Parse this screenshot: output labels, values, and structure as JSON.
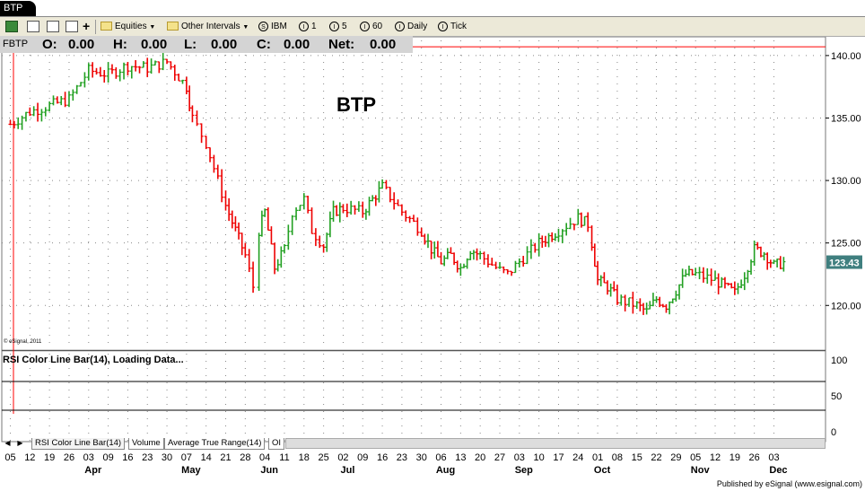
{
  "window": {
    "tab_title": "BTP"
  },
  "toolbar": {
    "equities": "Equities",
    "other_intervals": "Other Intervals",
    "intervals": [
      {
        "glyph": "S",
        "label": "IBM"
      },
      {
        "glyph": "I",
        "label": "1"
      },
      {
        "glyph": "I",
        "label": "5"
      },
      {
        "glyph": "I",
        "label": "60"
      },
      {
        "glyph": "I",
        "label": "Daily"
      },
      {
        "glyph": "I",
        "label": "Tick"
      }
    ]
  },
  "ohlc": {
    "symbol": "FBTP",
    "o_label": "O:",
    "o_value": "0.00",
    "h_label": "H:",
    "h_value": "0.00",
    "l_label": "L:",
    "l_value": "0.00",
    "c_label": "C:",
    "c_value": "0.00",
    "net_label": "Net:",
    "net_value": "0.00"
  },
  "copyright": "© eSignal, 2011",
  "rsi_label": "RSI Color Line Bar(14), Loading Data...",
  "study_tabs": [
    "RSI Color Line Bar(14)",
    "Volume",
    "Average True Range(14)",
    "OI"
  ],
  "footer": "Published by eSignal (www.esignal.com)",
  "colors": {
    "up": "#22a022",
    "down": "#ee0000",
    "price_box": "#3f7f7f",
    "cursor": "#ff0000",
    "ohlc_bg": "#d4d4d4"
  },
  "chart_data": {
    "type": "ohlc-bar",
    "title": "BTP",
    "ylim": [
      116.5,
      141.5
    ],
    "yticks": [
      "140.00",
      "135.00",
      "130.00",
      "125.00",
      "120.00"
    ],
    "last_price": "123.43",
    "resistance_line": 140.7,
    "rsi_panel": {
      "ticks": [
        "100",
        "50",
        "0"
      ],
      "levels": [
        70,
        30
      ]
    },
    "x_day_labels": [
      "05",
      "12",
      "19",
      "26",
      "03",
      "09",
      "16",
      "23",
      "30",
      "07",
      "14",
      "21",
      "28",
      "04",
      "11",
      "18",
      "25",
      "02",
      "09",
      "16",
      "23",
      "30",
      "06",
      "13",
      "20",
      "27",
      "03",
      "10",
      "17",
      "24",
      "01",
      "08",
      "15",
      "22",
      "29",
      "05",
      "12",
      "19",
      "26",
      "03"
    ],
    "x_month_labels": [
      {
        "label": "Apr",
        "at": 4
      },
      {
        "label": "May",
        "at": 9
      },
      {
        "label": "Jun",
        "at": 13
      },
      {
        "label": "Jul",
        "at": 17
      },
      {
        "label": "Aug",
        "at": 22
      },
      {
        "label": "Sep",
        "at": 26
      },
      {
        "label": "Oct",
        "at": 30
      },
      {
        "label": "Nov",
        "at": 35
      },
      {
        "label": "Dec",
        "at": 39
      }
    ],
    "series": [
      {
        "values": [
          [
            0,
            134.5
          ],
          [
            1,
            135.5
          ],
          [
            2,
            136
          ],
          [
            3,
            136.5
          ],
          [
            4,
            138.8
          ],
          [
            5,
            138.5
          ],
          [
            6,
            139.2
          ],
          [
            7,
            139
          ],
          [
            8,
            139.5
          ],
          [
            9,
            137.5
          ],
          [
            9.3,
            135
          ],
          [
            10,
            133
          ],
          [
            11,
            128
          ],
          [
            11.5,
            126
          ],
          [
            12,
            124
          ],
          [
            12.4,
            121.5
          ],
          [
            12.7,
            126
          ],
          [
            13,
            127.5
          ],
          [
            13.5,
            123
          ],
          [
            14,
            124.5
          ],
          [
            14.4,
            127.5
          ],
          [
            15,
            128.5
          ],
          [
            15.4,
            126
          ],
          [
            16,
            124.8
          ],
          [
            16.5,
            127.5
          ],
          [
            17,
            127.8
          ],
          [
            18,
            127.5
          ],
          [
            18.5,
            128.5
          ],
          [
            19,
            129.5
          ],
          [
            20,
            127.5
          ],
          [
            21,
            126
          ],
          [
            21.5,
            124.5
          ],
          [
            22,
            123.5
          ],
          [
            22.5,
            124
          ],
          [
            23,
            123
          ],
          [
            23.5,
            124.5
          ],
          [
            24,
            124
          ],
          [
            25,
            122.8
          ],
          [
            25.4,
            122.5
          ],
          [
            26,
            123.5
          ],
          [
            27,
            125
          ],
          [
            27.5,
            125.5
          ],
          [
            28,
            126
          ],
          [
            29,
            127
          ],
          [
            29.5,
            126.5
          ],
          [
            29.7,
            125
          ],
          [
            30,
            122
          ],
          [
            30.5,
            121.5
          ],
          [
            31,
            120.5
          ],
          [
            32,
            120
          ],
          [
            32.5,
            119.5
          ],
          [
            33,
            120.5
          ],
          [
            33.5,
            120
          ],
          [
            34,
            121.2
          ],
          [
            34.5,
            122.5
          ],
          [
            35,
            122.5
          ],
          [
            36,
            122
          ],
          [
            36.5,
            121.5
          ],
          [
            37,
            121
          ],
          [
            37.5,
            122.5
          ],
          [
            38,
            124.5
          ],
          [
            38.5,
            124.2
          ],
          [
            39,
            123.2
          ],
          [
            39.5,
            123.43
          ]
        ]
      }
    ]
  }
}
